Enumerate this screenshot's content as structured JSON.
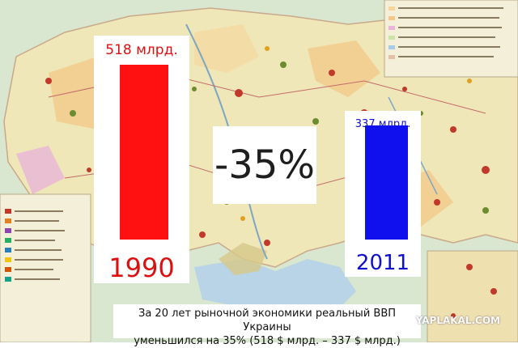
{
  "chart_data": {
    "type": "bar",
    "categories": [
      "1990",
      "2011"
    ],
    "values": [
      518,
      337
    ],
    "value_labels": [
      "518 млрд.",
      "337 млрд."
    ],
    "colors": [
      "#ff1111",
      "#1010ee"
    ],
    "change_label": "-35%",
    "ylim": [
      0,
      518
    ]
  },
  "caption": {
    "line1": "За 20 лет рыночной экономики реальный ВВП Украины",
    "line2": "уменьшился на 35% (518 $ млрд. – 337 $ млрд.)"
  },
  "watermark": "YAPLAKAL.COM"
}
